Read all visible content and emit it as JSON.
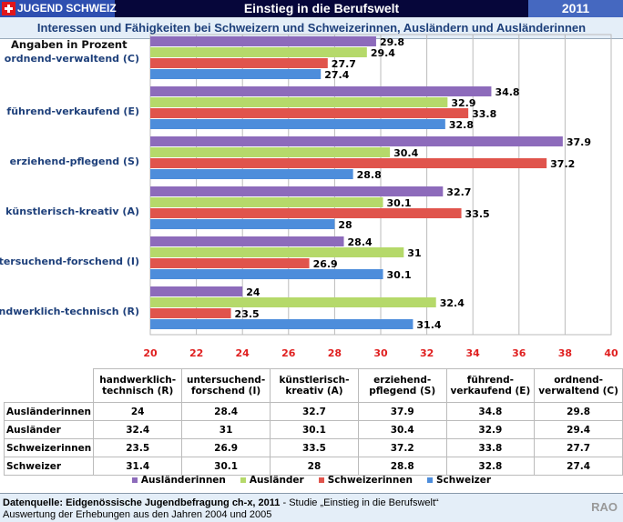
{
  "header": {
    "logo": "JUGEND SCHWEIZ",
    "title": "Einstieg in die Berufswelt",
    "year": "2011"
  },
  "subtitle": "Interessen und Fähigkeiten bei Schweizern und Schweizerinnen, Ausländern und Ausländerinnen",
  "chart_data": {
    "type": "bar",
    "orientation": "horizontal",
    "unit_label": "Angaben in Prozent",
    "categories": [
      "ordnend-verwaltend (C)",
      "führend-verkaufend (E)",
      "erziehend-pflegend (S)",
      "künstlerisch-kreativ (A)",
      "untersuchend-forschend (I)",
      "handwerklich-technisch (R)"
    ],
    "xlim": [
      20,
      40
    ],
    "xticks": [
      "20",
      "22",
      "24",
      "26",
      "28",
      "30",
      "32",
      "34",
      "36",
      "38",
      "40"
    ],
    "grid": true,
    "legend": "bottom",
    "series": [
      {
        "name": "Ausländerinnen",
        "color": "#8d6bbb",
        "values": [
          29.8,
          34.8,
          37.9,
          32.7,
          28.4,
          24
        ]
      },
      {
        "name": "Ausländer",
        "color": "#b5d96a",
        "values": [
          29.4,
          32.9,
          30.4,
          30.1,
          31,
          32.4
        ]
      },
      {
        "name": "Schweizerinnen",
        "color": "#e0544c",
        "values": [
          27.7,
          33.8,
          37.2,
          33.5,
          26.9,
          23.5
        ]
      },
      {
        "name": "Schweizer",
        "color": "#4d8ddb",
        "values": [
          27.4,
          32.8,
          28.8,
          28,
          30.1,
          31.4
        ]
      }
    ]
  },
  "table": {
    "headers": [
      [
        "handwerklich-",
        "technisch (R)"
      ],
      [
        "untersuchend-",
        "forschend (I)"
      ],
      [
        "künstlerisch-",
        "kreativ (A)"
      ],
      [
        "erziehend-",
        "pflegend (S)"
      ],
      [
        "führend-",
        "verkaufend (E)"
      ],
      [
        "ordnend-",
        "verwaltend (C)"
      ]
    ],
    "rows": [
      {
        "label": "Ausländerinnen",
        "values": [
          "24",
          "28.4",
          "32.7",
          "37.9",
          "34.8",
          "29.8"
        ]
      },
      {
        "label": "Ausländer",
        "values": [
          "32.4",
          "31",
          "30.1",
          "30.4",
          "32.9",
          "29.4"
        ]
      },
      {
        "label": "Schweizerinnen",
        "values": [
          "23.5",
          "26.9",
          "33.5",
          "37.2",
          "33.8",
          "27.7"
        ]
      },
      {
        "label": "Schweizer",
        "values": [
          "31.4",
          "30.1",
          "28",
          "28.8",
          "32.8",
          "27.4"
        ]
      }
    ]
  },
  "footer": {
    "source_bold": "Datenquelle: Eidgenössische Jugendbefragung ch-x, 2011",
    "source_rest": " - Studie „Einstieg in die Berufswelt“",
    "line2": "Auswertung der Erhebungen aus den Jahren 2004 und 2005",
    "brand": "RAO"
  }
}
